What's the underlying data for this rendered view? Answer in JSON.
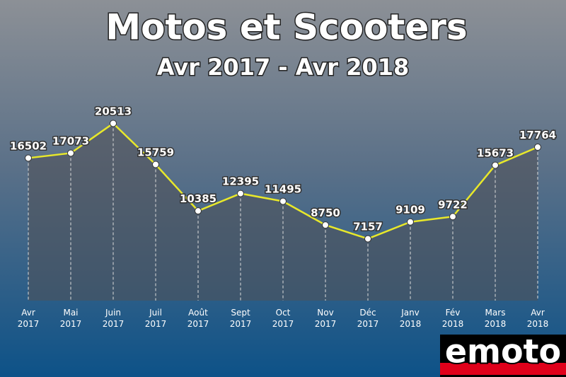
{
  "chart_data": {
    "type": "line",
    "title": "Motos et Scooters",
    "subtitle": "Avr 2017 - Avr 2018",
    "categories": [
      [
        "Avr",
        "2017"
      ],
      [
        "Mai",
        "2017"
      ],
      [
        "Juin",
        "2017"
      ],
      [
        "Juil",
        "2017"
      ],
      [
        "Août",
        "2017"
      ],
      [
        "Sept",
        "2017"
      ],
      [
        "Oct",
        "2017"
      ],
      [
        "Nov",
        "2017"
      ],
      [
        "Déc",
        "2017"
      ],
      [
        "Janv",
        "2018"
      ],
      [
        "Fév",
        "2018"
      ],
      [
        "Mars",
        "2018"
      ],
      [
        "Avr",
        "2018"
      ]
    ],
    "values": [
      16502,
      17073,
      20513,
      15759,
      10385,
      12395,
      11495,
      8750,
      7157,
      9109,
      9722,
      15673,
      17764
    ],
    "color": "#e8e82a",
    "ylim": [
      0,
      28000
    ],
    "logo": "emoto"
  }
}
